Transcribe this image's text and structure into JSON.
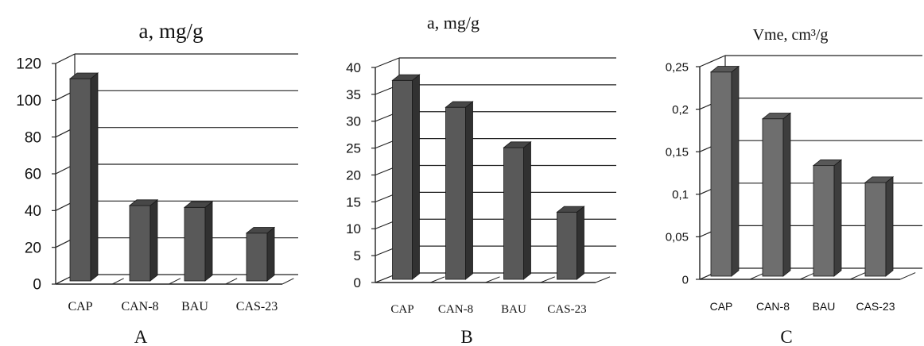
{
  "chart_data": [
    {
      "panel_label": "A",
      "type": "bar",
      "title": "a, mg/g",
      "categories": [
        "CAP",
        "CAN-8",
        "BAU",
        "CAS-23"
      ],
      "values": [
        110,
        41,
        40,
        26
      ],
      "ylim": [
        0,
        120
      ],
      "y_ticks": [
        "0",
        "20",
        "40",
        "60",
        "80",
        "100",
        "120"
      ],
      "grid": true,
      "bar_style": "3d",
      "bar_color": "#595959"
    },
    {
      "panel_label": "B",
      "type": "bar",
      "title": "a, mg/g",
      "categories": [
        "CAP",
        "CAN-8",
        "BAU",
        "CAS-23"
      ],
      "values": [
        37,
        32,
        24.5,
        12.5
      ],
      "ylim": [
        0,
        40
      ],
      "y_ticks": [
        "0",
        "5",
        "10",
        "15",
        "20",
        "25",
        "30",
        "35",
        "40"
      ],
      "grid": true,
      "bar_style": "3d",
      "bar_color": "#595959"
    },
    {
      "panel_label": "C",
      "type": "bar",
      "title": "Vme, cm³/g",
      "categories": [
        "CAP",
        "CAN-8",
        "BAU",
        "CAS-23"
      ],
      "values": [
        0.24,
        0.185,
        0.13,
        0.11
      ],
      "ylim": [
        0,
        0.25
      ],
      "y_ticks": [
        "0",
        "0,05",
        "0,1",
        "0,15",
        "0,2",
        "0,25"
      ],
      "grid": true,
      "bar_style": "3d",
      "bar_color": "#6e6e6e"
    }
  ]
}
